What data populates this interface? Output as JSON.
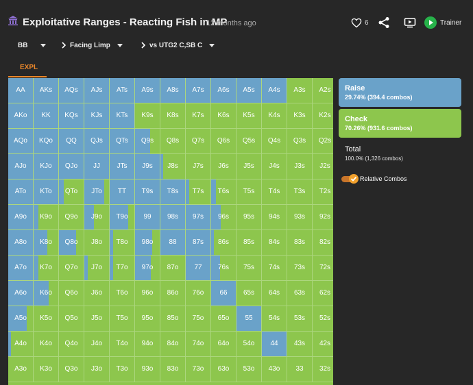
{
  "header": {
    "title": "Exploitative Ranges - Reacting Fish in MP",
    "subtitle": "12 months ago",
    "likes": "6",
    "trainer_label": "Trainer",
    "icons": [
      "bank-icon",
      "heart-icon",
      "share-icon",
      "tv-icon",
      "play-icon"
    ]
  },
  "selectors": [
    {
      "label": "BB"
    },
    {
      "label": "Facing Limp"
    },
    {
      "label": "vs UTG2 C,SB C"
    }
  ],
  "tab": {
    "label": "EXPL"
  },
  "colors": {
    "raise": "#6aa2c9",
    "check": "#8dc64d",
    "accent": "#e8862a",
    "background": "#272727"
  },
  "grid": {
    "rows": [
      {
        "cells": [
          {
            "label": "AA",
            "raise": 1
          },
          {
            "label": "AKs",
            "raise": 1
          },
          {
            "label": "AQs",
            "raise": 1
          },
          {
            "label": "AJs",
            "raise": 1
          },
          {
            "label": "ATs",
            "raise": 1
          },
          {
            "label": "A9s",
            "raise": 1
          },
          {
            "label": "A8s",
            "raise": 1
          },
          {
            "label": "A7s",
            "raise": 1
          },
          {
            "label": "A6s",
            "raise": 1
          },
          {
            "label": "A5s",
            "raise": 1
          },
          {
            "label": "A4s",
            "raise": 1
          },
          {
            "label": "A3s",
            "raise": 0
          },
          {
            "label": "A2s",
            "raise": 0
          }
        ]
      },
      {
        "cells": [
          {
            "label": "AKo",
            "raise": 1
          },
          {
            "label": "KK",
            "raise": 1
          },
          {
            "label": "KQs",
            "raise": 1
          },
          {
            "label": "KJs",
            "raise": 1
          },
          {
            "label": "KTs",
            "raise": 1
          },
          {
            "label": "K9s",
            "raise": 0
          },
          {
            "label": "K8s",
            "raise": 0
          },
          {
            "label": "K7s",
            "raise": 0
          },
          {
            "label": "K6s",
            "raise": 0
          },
          {
            "label": "K5s",
            "raise": 0
          },
          {
            "label": "K4s",
            "raise": 0
          },
          {
            "label": "K3s",
            "raise": 0
          },
          {
            "label": "K2s",
            "raise": 0
          }
        ]
      },
      {
        "cells": [
          {
            "label": "AQo",
            "raise": 1
          },
          {
            "label": "KQo",
            "raise": 1
          },
          {
            "label": "QQ",
            "raise": 1
          },
          {
            "label": "QJs",
            "raise": 1
          },
          {
            "label": "QTs",
            "raise": 1
          },
          {
            "label": "Q9s",
            "raise": 0.6
          },
          {
            "label": "Q8s",
            "raise": 0
          },
          {
            "label": "Q7s",
            "raise": 0
          },
          {
            "label": "Q6s",
            "raise": 0
          },
          {
            "label": "Q5s",
            "raise": 0
          },
          {
            "label": "Q4s",
            "raise": 0
          },
          {
            "label": "Q3s",
            "raise": 0
          },
          {
            "label": "Q2s",
            "raise": 0
          }
        ]
      },
      {
        "cells": [
          {
            "label": "AJo",
            "raise": 1
          },
          {
            "label": "KJo",
            "raise": 1
          },
          {
            "label": "QJo",
            "raise": 1
          },
          {
            "label": "JJ",
            "raise": 1
          },
          {
            "label": "JTs",
            "raise": 1
          },
          {
            "label": "J9s",
            "raise": 1
          },
          {
            "label": "J8s",
            "raise": 0.1
          },
          {
            "label": "J7s",
            "raise": 0
          },
          {
            "label": "J6s",
            "raise": 0
          },
          {
            "label": "J5s",
            "raise": 0
          },
          {
            "label": "J4s",
            "raise": 0
          },
          {
            "label": "J3s",
            "raise": 0
          },
          {
            "label": "J2s",
            "raise": 0
          }
        ]
      },
      {
        "cells": [
          {
            "label": "ATo",
            "raise": 1
          },
          {
            "label": "KTo",
            "raise": 1
          },
          {
            "label": "QTo",
            "raise": 0.2
          },
          {
            "label": "JTo",
            "raise": 0.8
          },
          {
            "label": "TT",
            "raise": 1
          },
          {
            "label": "T9s",
            "raise": 1
          },
          {
            "label": "T8s",
            "raise": 1
          },
          {
            "label": "T7s",
            "raise": 0.15
          },
          {
            "label": "T6s",
            "raise": 0.2
          },
          {
            "label": "T5s",
            "raise": 0
          },
          {
            "label": "T4s",
            "raise": 0
          },
          {
            "label": "T3s",
            "raise": 0
          },
          {
            "label": "T2s",
            "raise": 0
          }
        ]
      },
      {
        "cells": [
          {
            "label": "A9o",
            "raise": 1
          },
          {
            "label": "K9o",
            "raise": 0.2
          },
          {
            "label": "Q9o",
            "raise": 0
          },
          {
            "label": "J9o",
            "raise": 0.4
          },
          {
            "label": "T9o",
            "raise": 0.75
          },
          {
            "label": "99",
            "raise": 1
          },
          {
            "label": "98s",
            "raise": 1
          },
          {
            "label": "97s",
            "raise": 1
          },
          {
            "label": "96s",
            "raise": 0.4
          },
          {
            "label": "95s",
            "raise": 0
          },
          {
            "label": "94s",
            "raise": 0
          },
          {
            "label": "93s",
            "raise": 0
          },
          {
            "label": "92s",
            "raise": 0
          }
        ]
      },
      {
        "cells": [
          {
            "label": "A8o",
            "raise": 1
          },
          {
            "label": "K8o",
            "raise": 0.55
          },
          {
            "label": "Q8o",
            "raise": 0.7
          },
          {
            "label": "J8o",
            "raise": 0
          },
          {
            "label": "T8o",
            "raise": 0.15
          },
          {
            "label": "98o",
            "raise": 0.7
          },
          {
            "label": "88",
            "raise": 1
          },
          {
            "label": "87s",
            "raise": 1
          },
          {
            "label": "86s",
            "raise": 0.1
          },
          {
            "label": "85s",
            "raise": 0
          },
          {
            "label": "84s",
            "raise": 0
          },
          {
            "label": "83s",
            "raise": 0
          },
          {
            "label": "82s",
            "raise": 0
          }
        ]
      },
      {
        "cells": [
          {
            "label": "A7o",
            "raise": 1
          },
          {
            "label": "K7o",
            "raise": 0.2
          },
          {
            "label": "Q7o",
            "raise": 0
          },
          {
            "label": "J7o",
            "raise": 0.15
          },
          {
            "label": "T7o",
            "raise": 0.15
          },
          {
            "label": "97o",
            "raise": 0.65
          },
          {
            "label": "87o",
            "raise": 0
          },
          {
            "label": "77",
            "raise": 1
          },
          {
            "label": "76s",
            "raise": 0.35
          },
          {
            "label": "75s",
            "raise": 0
          },
          {
            "label": "74s",
            "raise": 0
          },
          {
            "label": "73s",
            "raise": 0
          },
          {
            "label": "72s",
            "raise": 0
          }
        ]
      },
      {
        "cells": [
          {
            "label": "A6o",
            "raise": 1
          },
          {
            "label": "K6o",
            "raise": 0.6
          },
          {
            "label": "Q6o",
            "raise": 0
          },
          {
            "label": "J6o",
            "raise": 0
          },
          {
            "label": "T6o",
            "raise": 0
          },
          {
            "label": "96o",
            "raise": 0
          },
          {
            "label": "86o",
            "raise": 0
          },
          {
            "label": "76o",
            "raise": 0
          },
          {
            "label": "66",
            "raise": 1
          },
          {
            "label": "65s",
            "raise": 0
          },
          {
            "label": "64s",
            "raise": 0
          },
          {
            "label": "63s",
            "raise": 0
          },
          {
            "label": "62s",
            "raise": 0
          }
        ]
      },
      {
        "cells": [
          {
            "label": "A5o",
            "raise": 0.75
          },
          {
            "label": "K5o",
            "raise": 0
          },
          {
            "label": "Q5o",
            "raise": 0
          },
          {
            "label": "J5o",
            "raise": 0
          },
          {
            "label": "T5o",
            "raise": 0
          },
          {
            "label": "95o",
            "raise": 0
          },
          {
            "label": "85o",
            "raise": 0
          },
          {
            "label": "75o",
            "raise": 0
          },
          {
            "label": "65o",
            "raise": 0
          },
          {
            "label": "55",
            "raise": 1
          },
          {
            "label": "54s",
            "raise": 0
          },
          {
            "label": "53s",
            "raise": 0
          },
          {
            "label": "52s",
            "raise": 0
          }
        ]
      },
      {
        "cells": [
          {
            "label": "A4o",
            "raise": 0.1
          },
          {
            "label": "K4o",
            "raise": 0
          },
          {
            "label": "Q4o",
            "raise": 0
          },
          {
            "label": "J4o",
            "raise": 0
          },
          {
            "label": "T4o",
            "raise": 0
          },
          {
            "label": "94o",
            "raise": 0
          },
          {
            "label": "84o",
            "raise": 0
          },
          {
            "label": "74o",
            "raise": 0
          },
          {
            "label": "64o",
            "raise": 0
          },
          {
            "label": "54o",
            "raise": 0
          },
          {
            "label": "44",
            "raise": 1
          },
          {
            "label": "43s",
            "raise": 0
          },
          {
            "label": "42s",
            "raise": 0
          }
        ]
      },
      {
        "cells": [
          {
            "label": "A3o",
            "raise": 0
          },
          {
            "label": "K3o",
            "raise": 0
          },
          {
            "label": "Q3o",
            "raise": 0
          },
          {
            "label": "J3o",
            "raise": 0
          },
          {
            "label": "T3o",
            "raise": 0
          },
          {
            "label": "93o",
            "raise": 0
          },
          {
            "label": "83o",
            "raise": 0
          },
          {
            "label": "73o",
            "raise": 0
          },
          {
            "label": "63o",
            "raise": 0
          },
          {
            "label": "53o",
            "raise": 0
          },
          {
            "label": "43o",
            "raise": 0
          },
          {
            "label": "33",
            "raise": 0
          },
          {
            "label": "32s",
            "raise": 0
          }
        ]
      }
    ]
  },
  "panel": {
    "raise": {
      "name": "Raise",
      "pct": "29.74% (394.4 combos)"
    },
    "check": {
      "name": "Check",
      "pct": "70.26% (931.6 combos)"
    },
    "total": {
      "name": "Total",
      "pct": "100.0% (1,326 combos)"
    },
    "toggle": {
      "label": "Relative Combos",
      "on": true
    }
  }
}
